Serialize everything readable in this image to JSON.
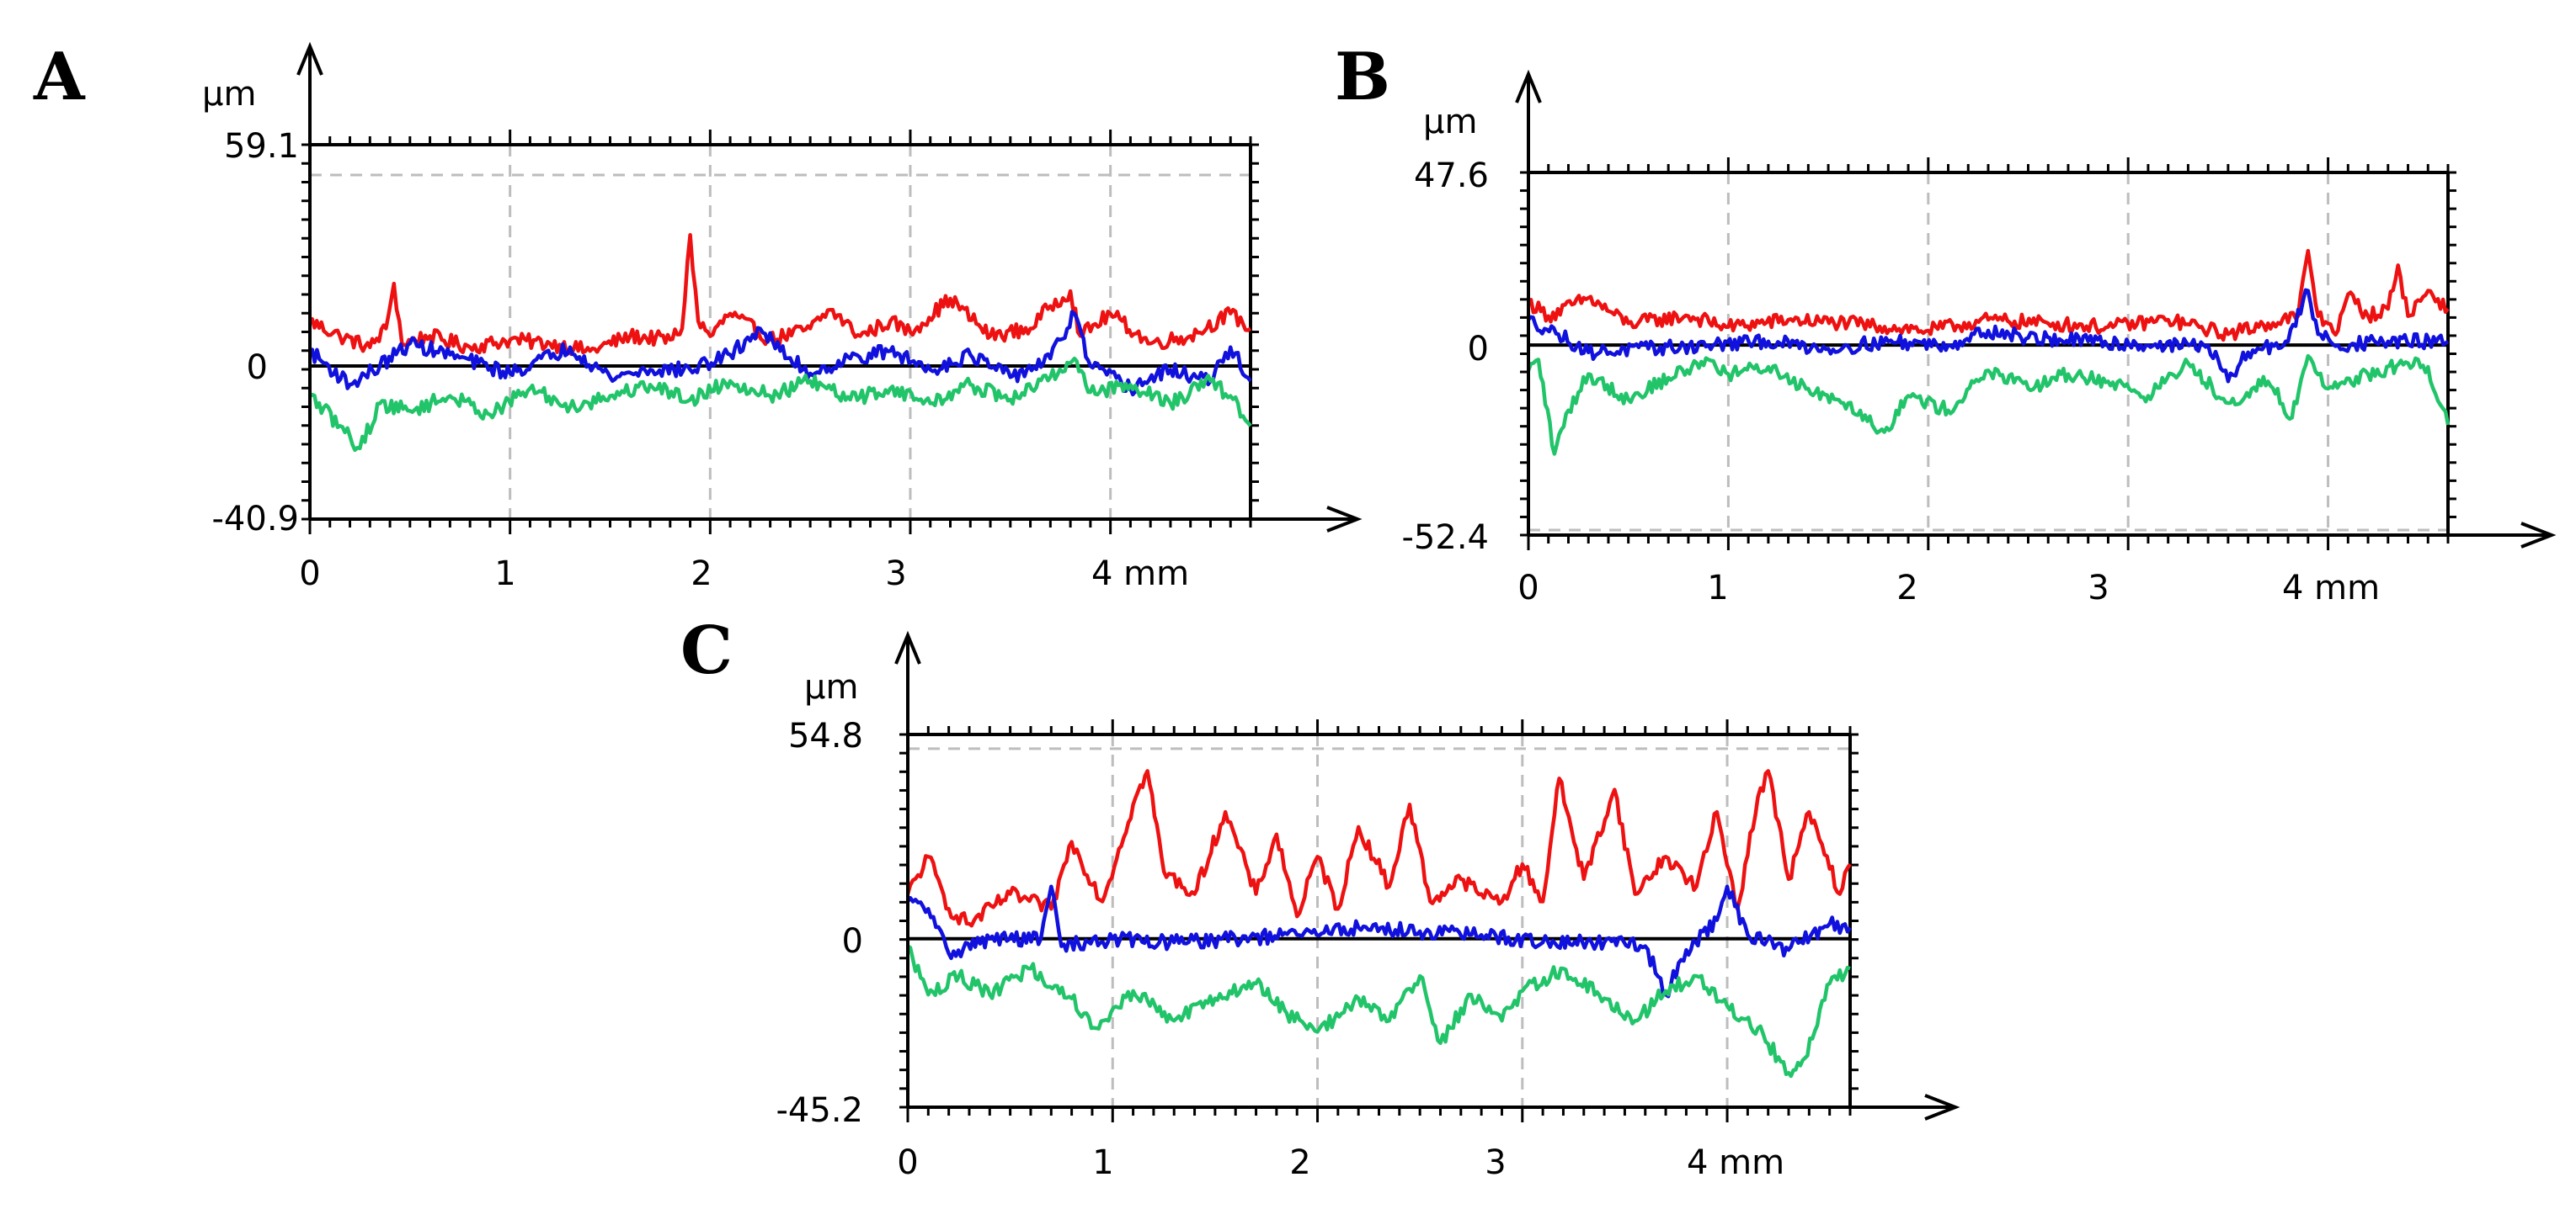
{
  "chart_data": [
    {
      "type": "line",
      "panel": "A",
      "y_unit": "µm",
      "x_unit": "mm",
      "xlim": [
        0,
        4.7
      ],
      "ylim": [
        -40.9,
        59.1
      ],
      "y_tick_labels": [
        "59.1",
        "0",
        "-40.9"
      ],
      "x_tick_labels": [
        "0",
        "1",
        "2",
        "3",
        "4 mm"
      ],
      "x_ticks": [
        0,
        1,
        2,
        3,
        4
      ],
      "y_ref_lines": [
        {
          "value": 0,
          "style": "solid"
        },
        {
          "value": 51.0,
          "style": "dashed"
        }
      ],
      "grid_x_dashed": [
        1,
        2,
        3,
        4
      ],
      "colors": {
        "red": "#ee1111",
        "blue": "#1111dd",
        "green": "#22c46a"
      },
      "series": [
        {
          "name": "red",
          "color": "#ee1111",
          "x": [
            0,
            0.15,
            0.3,
            0.38,
            0.42,
            0.46,
            0.6,
            0.8,
            1.0,
            1.2,
            1.4,
            1.6,
            1.8,
            1.86,
            1.9,
            1.94,
            2.0,
            2.1,
            2.3,
            2.5,
            2.6,
            2.75,
            2.9,
            3.0,
            3.2,
            3.4,
            3.6,
            3.7,
            3.8,
            3.85,
            4.0,
            4.2,
            4.4,
            4.6,
            4.7
          ],
          "values": [
            12,
            8,
            5,
            10,
            22,
            6,
            8,
            5,
            7,
            6,
            4,
            8,
            7,
            10,
            35,
            12,
            8,
            14,
            7,
            10,
            15,
            8,
            12,
            9,
            18,
            8,
            10,
            16,
            20,
            8,
            14,
            6,
            8,
            14,
            10
          ]
        },
        {
          "name": "blue",
          "color": "#1111dd",
          "x": [
            0,
            0.2,
            0.35,
            0.5,
            0.7,
            1.0,
            1.3,
            1.5,
            1.7,
            1.9,
            2.1,
            2.25,
            2.35,
            2.5,
            2.7,
            2.9,
            3.1,
            3.3,
            3.5,
            3.7,
            3.82,
            3.9,
            4.1,
            4.3,
            4.5,
            4.6,
            4.7
          ],
          "values": [
            4,
            -5,
            0,
            6,
            3,
            -2,
            5,
            -3,
            -1,
            -1,
            3,
            10,
            4,
            -2,
            2,
            4,
            -1,
            3,
            -3,
            2,
            14,
            0,
            -6,
            -1,
            -4,
            5,
            -4
          ]
        },
        {
          "name": "green",
          "color": "#22c46a",
          "x": [
            0,
            0.15,
            0.25,
            0.35,
            0.5,
            0.7,
            0.9,
            1.1,
            1.3,
            1.5,
            1.7,
            1.9,
            2.1,
            2.3,
            2.5,
            2.7,
            2.9,
            3.1,
            3.3,
            3.5,
            3.7,
            3.82,
            3.9,
            4.1,
            4.3,
            4.5,
            4.6,
            4.7
          ],
          "values": [
            -8,
            -16,
            -22,
            -10,
            -12,
            -8,
            -13,
            -6,
            -11,
            -8,
            -5,
            -9,
            -4,
            -8,
            -4,
            -9,
            -6,
            -10,
            -5,
            -9,
            -3,
            2,
            -7,
            -5,
            -10,
            -4,
            -8,
            -16
          ]
        }
      ]
    },
    {
      "type": "line",
      "panel": "B",
      "y_unit": "µm",
      "x_unit": "mm",
      "xlim": [
        0,
        4.6
      ],
      "ylim": [
        -52.4,
        47.6
      ],
      "y_tick_labels": [
        "47.6",
        "0",
        "-52.4"
      ],
      "x_tick_labels": [
        "0",
        "1",
        "2",
        "3",
        "4 mm"
      ],
      "x_ticks": [
        0,
        1,
        2,
        3,
        4
      ],
      "y_ref_lines": [
        {
          "value": 0,
          "style": "solid"
        },
        {
          "value": -51.0,
          "style": "dashed"
        }
      ],
      "grid_x_dashed": [
        1,
        2,
        3,
        4
      ],
      "colors": {
        "red": "#ee1111",
        "blue": "#1111dd",
        "green": "#22c46a"
      },
      "series": [
        {
          "name": "red",
          "color": "#ee1111",
          "x": [
            0,
            0.1,
            0.3,
            0.5,
            0.8,
            1.0,
            1.3,
            1.6,
            2.0,
            2.3,
            2.6,
            2.9,
            3.2,
            3.5,
            3.7,
            3.85,
            3.9,
            3.95,
            4.05,
            4.1,
            4.2,
            4.3,
            4.35,
            4.4,
            4.5,
            4.6
          ],
          "values": [
            12,
            8,
            13,
            6,
            8,
            5,
            7,
            6,
            4,
            7,
            6,
            5,
            7,
            3,
            6,
            8,
            26,
            8,
            4,
            14,
            8,
            10,
            22,
            8,
            15,
            10
          ]
        },
        {
          "name": "blue",
          "color": "#1111dd",
          "x": [
            0,
            0.15,
            0.3,
            0.6,
            0.9,
            1.2,
            1.5,
            1.8,
            2.1,
            2.3,
            2.5,
            2.8,
            3.1,
            3.4,
            3.5,
            3.6,
            3.8,
            3.9,
            3.95,
            4.05,
            4.3,
            4.6
          ],
          "values": [
            7,
            3,
            -2,
            -1,
            0,
            1,
            -1,
            1,
            0,
            4,
            2,
            1,
            0,
            0,
            -10,
            -2,
            1,
            15,
            3,
            0,
            1,
            1
          ]
        },
        {
          "name": "green",
          "color": "#22c46a",
          "x": [
            0,
            0.05,
            0.13,
            0.2,
            0.3,
            0.5,
            0.7,
            0.9,
            1.0,
            1.2,
            1.4,
            1.6,
            1.78,
            1.9,
            2.1,
            2.3,
            2.5,
            2.7,
            2.9,
            3.1,
            3.3,
            3.5,
            3.7,
            3.82,
            3.9,
            4.0,
            4.2,
            4.4,
            4.5,
            4.6
          ],
          "values": [
            -7,
            -4,
            -30,
            -18,
            -8,
            -15,
            -9,
            -4,
            -8,
            -6,
            -12,
            -16,
            -24,
            -14,
            -18,
            -7,
            -12,
            -8,
            -10,
            -14,
            -5,
            -16,
            -10,
            -20,
            -3,
            -12,
            -8,
            -5,
            -6,
            -22
          ]
        }
      ]
    },
    {
      "type": "line",
      "panel": "C",
      "y_unit": "µm",
      "x_unit": "mm",
      "xlim": [
        0,
        4.6
      ],
      "ylim": [
        -45.2,
        54.8
      ],
      "y_tick_labels": [
        "54.8",
        "0",
        "-45.2"
      ],
      "x_tick_labels": [
        "0",
        "1",
        "2",
        "3",
        "4 mm"
      ],
      "x_ticks": [
        0,
        1,
        2,
        3,
        4
      ],
      "y_ref_lines": [
        {
          "value": 0,
          "style": "solid"
        },
        {
          "value": 51.0,
          "style": "dashed"
        }
      ],
      "grid_x_dashed": [
        1,
        2,
        3,
        4
      ],
      "colors": {
        "red": "#ee1111",
        "blue": "#1111dd",
        "green": "#22c46a"
      },
      "series": [
        {
          "name": "red",
          "color": "#ee1111",
          "x": [
            0,
            0.1,
            0.2,
            0.3,
            0.5,
            0.7,
            0.8,
            0.95,
            1.1,
            1.17,
            1.25,
            1.4,
            1.55,
            1.7,
            1.8,
            1.9,
            2.0,
            2.1,
            2.2,
            2.35,
            2.45,
            2.55,
            2.7,
            2.8,
            2.9,
            3.0,
            3.1,
            3.18,
            3.3,
            3.45,
            3.55,
            3.7,
            3.85,
            3.95,
            4.05,
            4.15,
            4.2,
            4.3,
            4.4,
            4.55,
            4.6
          ],
          "values": [
            12,
            22,
            8,
            4,
            12,
            8,
            26,
            10,
            36,
            45,
            18,
            12,
            34,
            12,
            28,
            6,
            22,
            8,
            30,
            14,
            36,
            10,
            16,
            12,
            10,
            20,
            10,
            43,
            16,
            40,
            12,
            22,
            14,
            34,
            8,
            38,
            45,
            16,
            34,
            12,
            20
          ]
        },
        {
          "name": "blue",
          "color": "#1111dd",
          "x": [
            0,
            0.1,
            0.2,
            0.4,
            0.65,
            0.7,
            0.75,
            1.0,
            1.3,
            1.6,
            1.9,
            2.2,
            2.5,
            2.8,
            3.1,
            3.4,
            3.6,
            3.7,
            3.8,
            3.95,
            4.0,
            4.1,
            4.3,
            4.5,
            4.6
          ],
          "values": [
            10,
            8,
            -4,
            0,
            0,
            14,
            -2,
            0,
            -1,
            0,
            1,
            3,
            2,
            1,
            -1,
            -1,
            -2,
            -15,
            -3,
            5,
            14,
            1,
            -3,
            4,
            3
          ]
        },
        {
          "name": "green",
          "color": "#22c46a",
          "x": [
            0,
            0.1,
            0.25,
            0.4,
            0.6,
            0.8,
            0.92,
            1.1,
            1.3,
            1.5,
            1.7,
            1.85,
            2.0,
            2.2,
            2.35,
            2.5,
            2.6,
            2.75,
            2.9,
            3.0,
            3.2,
            3.4,
            3.55,
            3.7,
            3.85,
            4.0,
            4.15,
            4.3,
            4.38,
            4.5,
            4.6
          ],
          "values": [
            -2,
            -15,
            -10,
            -15,
            -8,
            -16,
            -24,
            -14,
            -22,
            -16,
            -12,
            -20,
            -25,
            -16,
            -22,
            -10,
            -28,
            -15,
            -22,
            -14,
            -8,
            -16,
            -22,
            -14,
            -10,
            -18,
            -24,
            -36,
            -32,
            -12,
            -8
          ]
        }
      ]
    }
  ]
}
